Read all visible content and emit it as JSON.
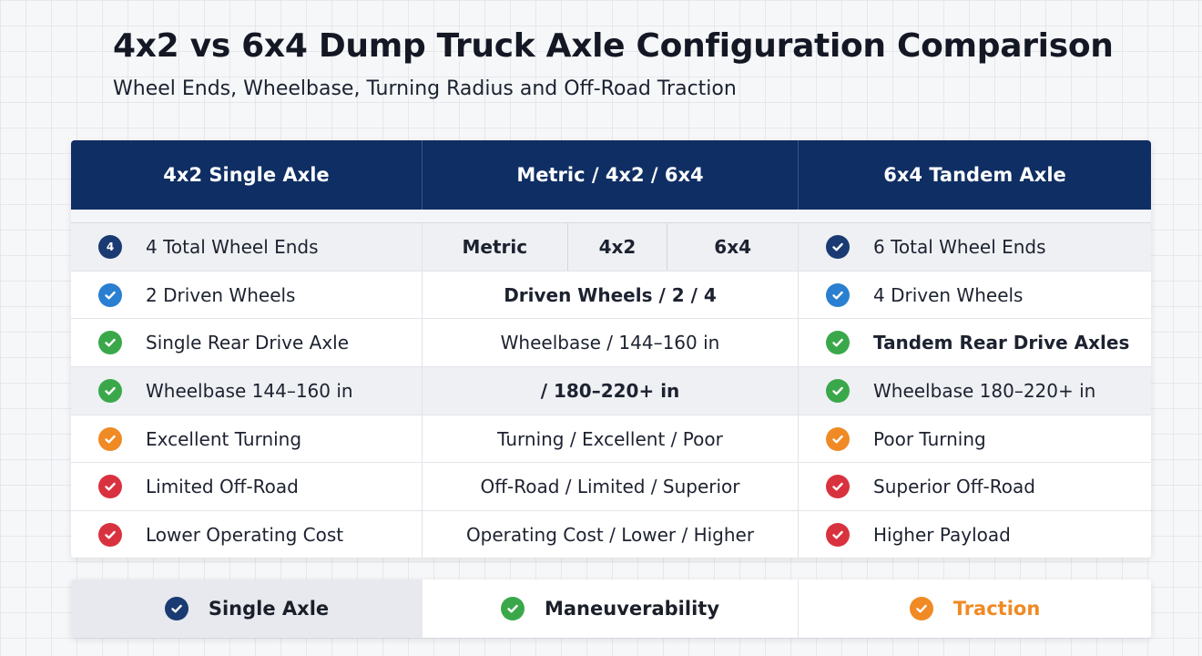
{
  "title": "4x2 vs 6x4 Dump Truck Axle Configuration Comparison",
  "subtitle": "Wheel Ends, Wheelbase, Turning Radius and Off-Road Traction",
  "colors": {
    "header_bg": "#0f2e63",
    "navy": "#1a3a73",
    "blue": "#2a7fd0",
    "green": "#3aa84a",
    "orange": "#f08a24",
    "red": "#d9323f"
  },
  "table": {
    "headers": [
      "4x2 Single Axle",
      "Metric / 4x2 / 6x4",
      "6x4 Tandem Axle"
    ],
    "sub_headers": [
      "Metric",
      "4x2",
      "6x4"
    ],
    "rows": [
      {
        "left": "4 Total Wheel Ends",
        "left_icon": "number-4-icon",
        "left_icon_text": "4",
        "left_color": "#1a3a73",
        "mid": "",
        "right": "6 Total Wheel Ends",
        "right_icon": "check-icon",
        "right_color": "#1a3a73"
      },
      {
        "left": "2 Driven Wheels",
        "left_icon": "check-icon",
        "left_color": "#2a7fd0",
        "mid": "Driven Wheels / 2 / 4",
        "right": "4 Driven Wheels",
        "right_icon": "check-icon",
        "right_color": "#2a7fd0"
      },
      {
        "left": "Single Rear Drive Axle",
        "left_icon": "check-icon",
        "left_color": "#3aa84a",
        "mid": "Wheelbase / 144–160 in",
        "right": "Tandem Rear Drive Axles",
        "right_icon": "check-icon",
        "right_color": "#3aa84a"
      },
      {
        "left": "Wheelbase 144–160 in",
        "left_icon": "check-icon",
        "left_color": "#3aa84a",
        "mid": "/ 180–220+ in",
        "right": "Wheelbase 180–220+ in",
        "right_icon": "check-icon",
        "right_color": "#3aa84a"
      },
      {
        "left": "Excellent Turning",
        "left_icon": "check-icon",
        "left_color": "#f08a24",
        "mid": "Turning / Excellent / Poor",
        "right": "Poor Turning",
        "right_icon": "check-icon",
        "right_color": "#f08a24"
      },
      {
        "left": "Limited Off-Road",
        "left_icon": "check-icon",
        "left_color": "#d9323f",
        "mid": "Off-Road / Limited / Superior",
        "right": "Superior Off-Road",
        "right_icon": "check-icon",
        "right_color": "#d9323f"
      },
      {
        "left": "Lower Operating Cost",
        "left_icon": "check-icon",
        "left_color": "#d9323f",
        "mid": "Operating Cost / Lower / Higher",
        "right": "Higher Payload",
        "right_icon": "check-icon",
        "right_color": "#d9323f"
      }
    ]
  },
  "footer": [
    {
      "label": "Single Axle",
      "icon": "check-icon",
      "color": "#1a3a73",
      "text_color": "#1b1f2a"
    },
    {
      "label": "Maneuverability",
      "icon": "check-icon",
      "color": "#3aa84a",
      "text_color": "#1b1f2a"
    },
    {
      "label": "Traction",
      "icon": "check-icon",
      "color": "#f08a24",
      "text_color": "#f08a24"
    }
  ]
}
